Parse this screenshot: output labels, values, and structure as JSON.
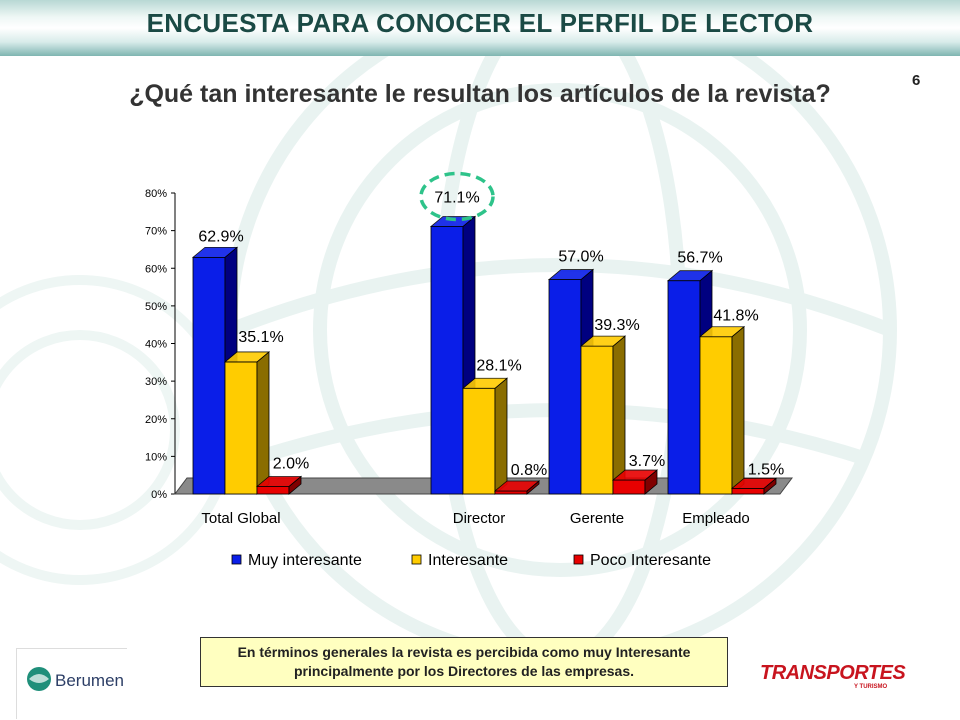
{
  "header": {
    "title": "ENCUESTA PARA CONOCER EL PERFIL DE LECTOR"
  },
  "slide_number": "6",
  "question": "¿Qué tan interesante le resultan los artículos de la revista?",
  "note": "En términos generales la revista es percibida como muy Interesante principalmente por los Directores de las empresas.",
  "logos": {
    "left_text": "Berumen",
    "right_text": "TRANSPORTES",
    "right_sub": "Y TURISMO"
  },
  "colors": {
    "muy": "#0a1ee8",
    "muy_dark": "#000080",
    "interesante": "#ffcc00",
    "interesante_dark": "#8a6d00",
    "poco": "#e80000",
    "poco_dark": "#800000",
    "highlight": "#2ec38a",
    "note_bg": "#ffffc0"
  },
  "chart_data": {
    "type": "bar",
    "categories": [
      "Total Global",
      "Director",
      "Gerente",
      "Empleado"
    ],
    "series": [
      {
        "name": "Muy interesante",
        "values": [
          62.9,
          71.1,
          57.0,
          56.7
        ],
        "labels": [
          "62.9%",
          "71.1%",
          "57.0%",
          "56.7%"
        ]
      },
      {
        "name": "Interesante",
        "values": [
          35.1,
          28.1,
          39.3,
          41.8
        ],
        "labels": [
          "35.1%",
          "28.1%",
          "39.3%",
          "41.8%"
        ]
      },
      {
        "name": "Poco Interesante",
        "values": [
          2.0,
          0.8,
          3.7,
          1.5
        ],
        "labels": [
          "2.0%",
          "0.8%",
          "3.7%",
          "1.5%"
        ]
      }
    ],
    "yticks": [
      "0%",
      "10%",
      "20%",
      "30%",
      "40%",
      "50%",
      "60%",
      "70%",
      "80%"
    ],
    "ylim": [
      0,
      80
    ],
    "legend": "bottom",
    "highlight": {
      "category": "Director",
      "series": "Muy interesante"
    }
  }
}
